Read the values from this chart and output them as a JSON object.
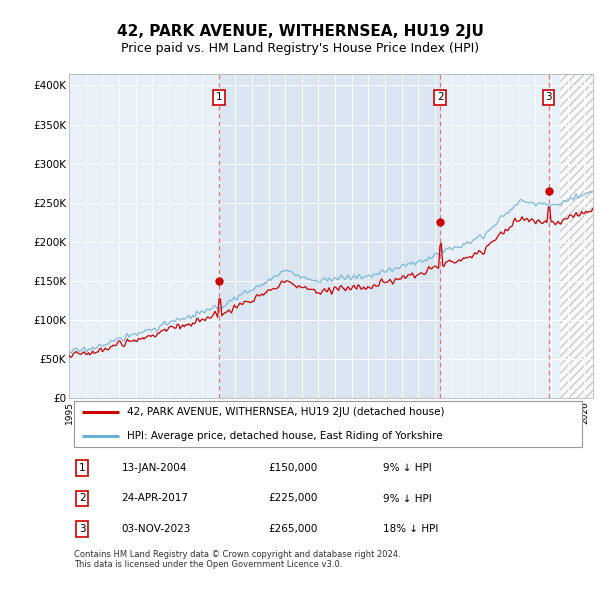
{
  "title": "42, PARK AVENUE, WITHERNSEA, HU19 2JU",
  "subtitle": "Price paid vs. HM Land Registry's House Price Index (HPI)",
  "title_fontsize": 11,
  "subtitle_fontsize": 9,
  "ylabel_ticks": [
    "£0",
    "£50K",
    "£100K",
    "£150K",
    "£200K",
    "£250K",
    "£300K",
    "£350K",
    "£400K"
  ],
  "ytick_values": [
    0,
    50000,
    100000,
    150000,
    200000,
    250000,
    300000,
    350000,
    400000
  ],
  "ylim": [
    0,
    415000
  ],
  "xlim_start": 1995.0,
  "xlim_end": 2026.5,
  "xtick_years": [
    1995,
    1996,
    1997,
    1998,
    1999,
    2000,
    2001,
    2002,
    2003,
    2004,
    2005,
    2006,
    2007,
    2008,
    2009,
    2010,
    2011,
    2012,
    2013,
    2014,
    2015,
    2016,
    2017,
    2018,
    2019,
    2020,
    2021,
    2022,
    2023,
    2024,
    2025,
    2026
  ],
  "hpi_color": "#6baed6",
  "price_color": "#cc0000",
  "vline_color": "#ff6666",
  "shade_color": "#d0e8f8",
  "legend_line1": "42, PARK AVENUE, WITHERNSEA, HU19 2JU (detached house)",
  "legend_line2": "HPI: Average price, detached house, East Riding of Yorkshire",
  "transactions": [
    {
      "num": 1,
      "date": "13-JAN-2004",
      "price": 150000,
      "pct": "9%",
      "dir": "↓",
      "year": 2004.04
    },
    {
      "num": 2,
      "date": "24-APR-2017",
      "price": 225000,
      "pct": "9%",
      "dir": "↓",
      "year": 2017.32
    },
    {
      "num": 3,
      "date": "03-NOV-2023",
      "price": 265000,
      "pct": "18%",
      "dir": "↓",
      "year": 2023.84
    }
  ],
  "footer": "Contains HM Land Registry data © Crown copyright and database right 2024.\nThis data is licensed under the Open Government Licence v3.0.",
  "plot_bg": "#e8f0f8"
}
